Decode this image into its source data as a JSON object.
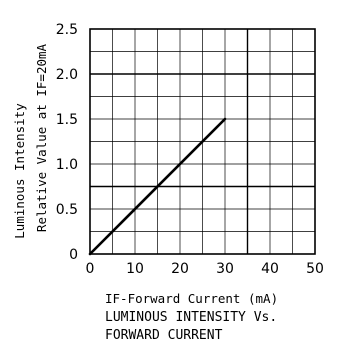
{
  "chart_data": {
    "type": "line",
    "x_label": "IF-Forward Current (mA)",
    "y_label_line1": "Luminous Intensity",
    "y_label_line2": "Relative Value at IF=20mA",
    "caption_line1": "LUMINOUS INTENSITY Vs.",
    "caption_line2": "FORWARD CURRENT",
    "x_ticks": [
      "0",
      "10",
      "20",
      "30",
      "40",
      "50"
    ],
    "y_ticks": [
      "0",
      "0.5",
      "1.0",
      "1.5",
      "2.0",
      "2.5"
    ],
    "xlim": [
      0,
      50
    ],
    "ylim": [
      0,
      2.5
    ],
    "grid": true,
    "series": [
      {
        "x": [
          0,
          30
        ],
        "y": [
          0,
          1.5
        ]
      }
    ]
  }
}
